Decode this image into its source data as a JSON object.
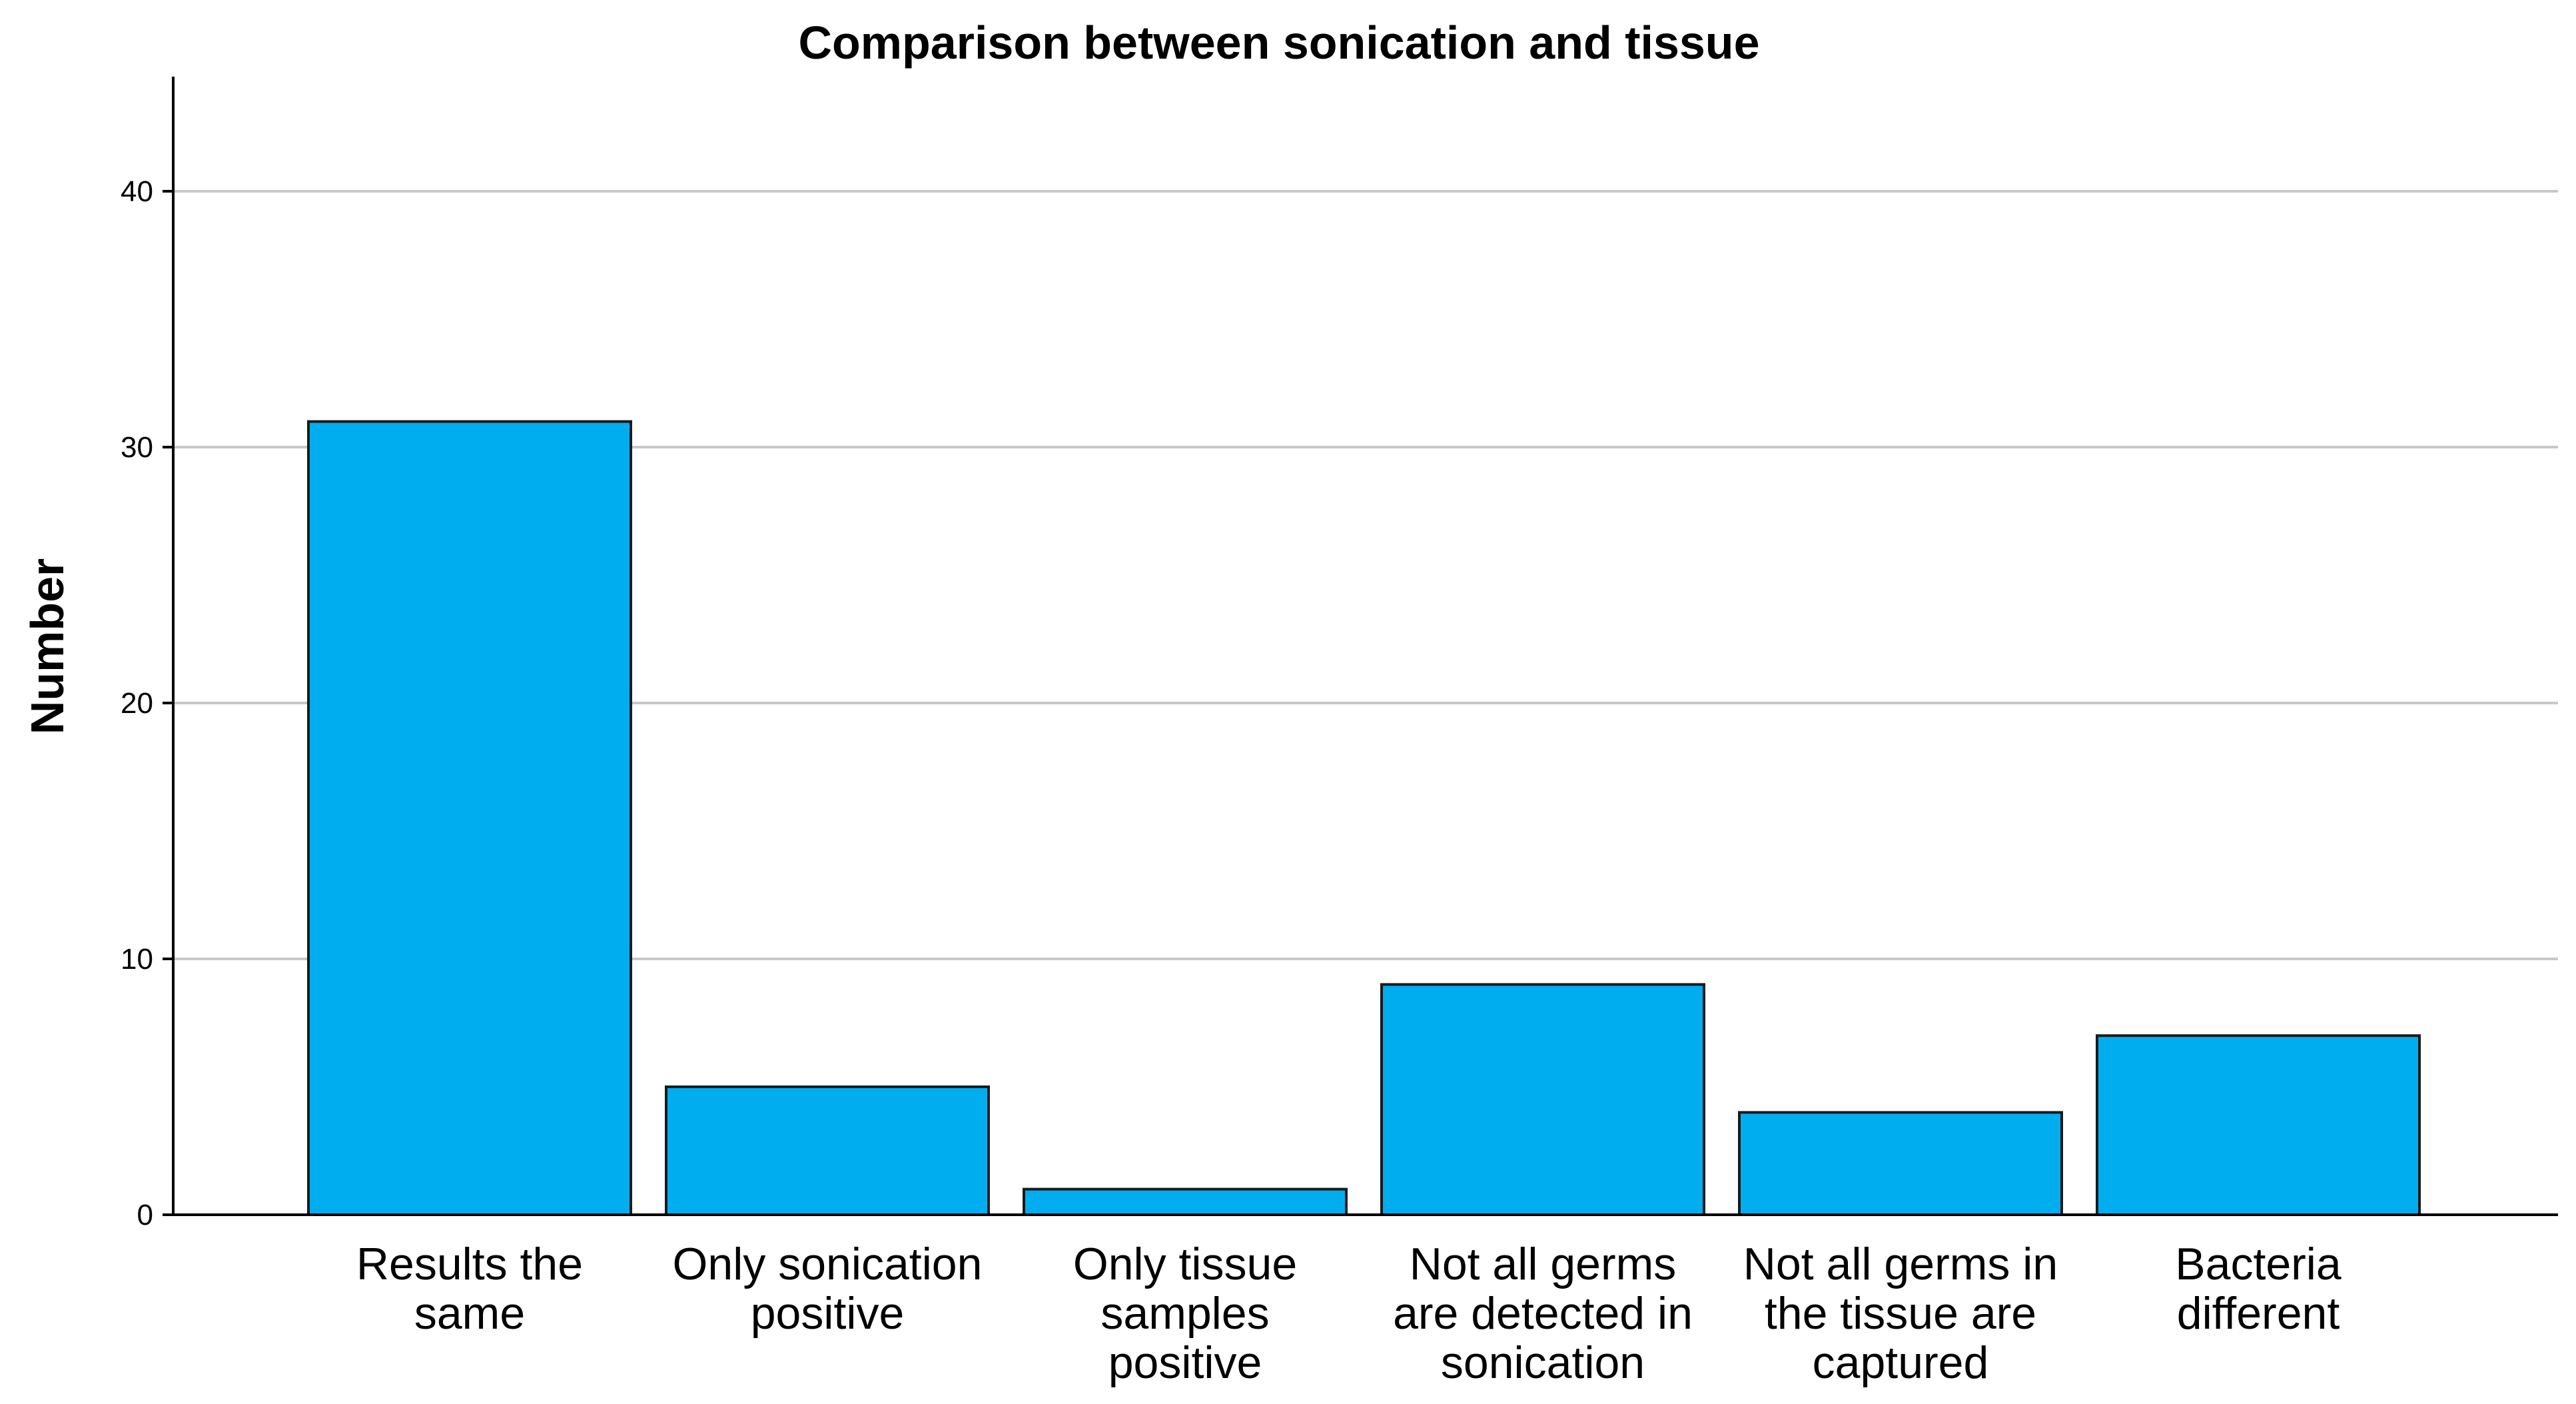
{
  "chart_data": {
    "type": "bar",
    "title": "Comparison between sonication and tissue",
    "xlabel": "",
    "ylabel": "Number",
    "ylim": [
      0,
      45
    ],
    "yticks": [
      0,
      10,
      20,
      30,
      40
    ],
    "grid": true,
    "legend": "none",
    "bar_color": "#00AEEF",
    "categories": [
      [
        "Results the",
        "same"
      ],
      [
        "Only sonication",
        "positive"
      ],
      [
        "Only tissue",
        "samples",
        "positive"
      ],
      [
        "Not all germs",
        "are detected in",
        "sonication"
      ],
      [
        "Not all germs in",
        "the tissue are",
        "captured"
      ],
      [
        "Bacteria",
        "different"
      ]
    ],
    "values": [
      31,
      5,
      1,
      9,
      4,
      7
    ]
  }
}
